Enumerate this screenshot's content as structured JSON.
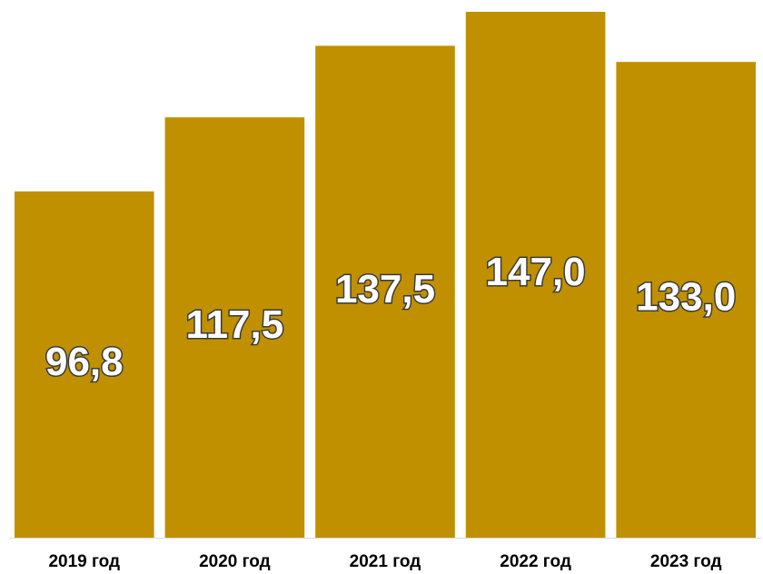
{
  "chart_data": {
    "type": "bar",
    "categories": [
      "2019 год",
      "2020 год",
      "2021 год",
      "2022 год",
      "2023 год"
    ],
    "values": [
      96.8,
      117.5,
      137.5,
      147.0,
      133.0
    ],
    "value_labels": [
      "96,8",
      "117,5",
      "137,5",
      "147,0",
      "133,0"
    ],
    "title": "",
    "xlabel": "",
    "ylabel": "",
    "grid": false,
    "legend": "none",
    "bar_color": "#C09000",
    "label_color": "#FFFFFF",
    "label_outline_color": "#3A3A3A"
  }
}
